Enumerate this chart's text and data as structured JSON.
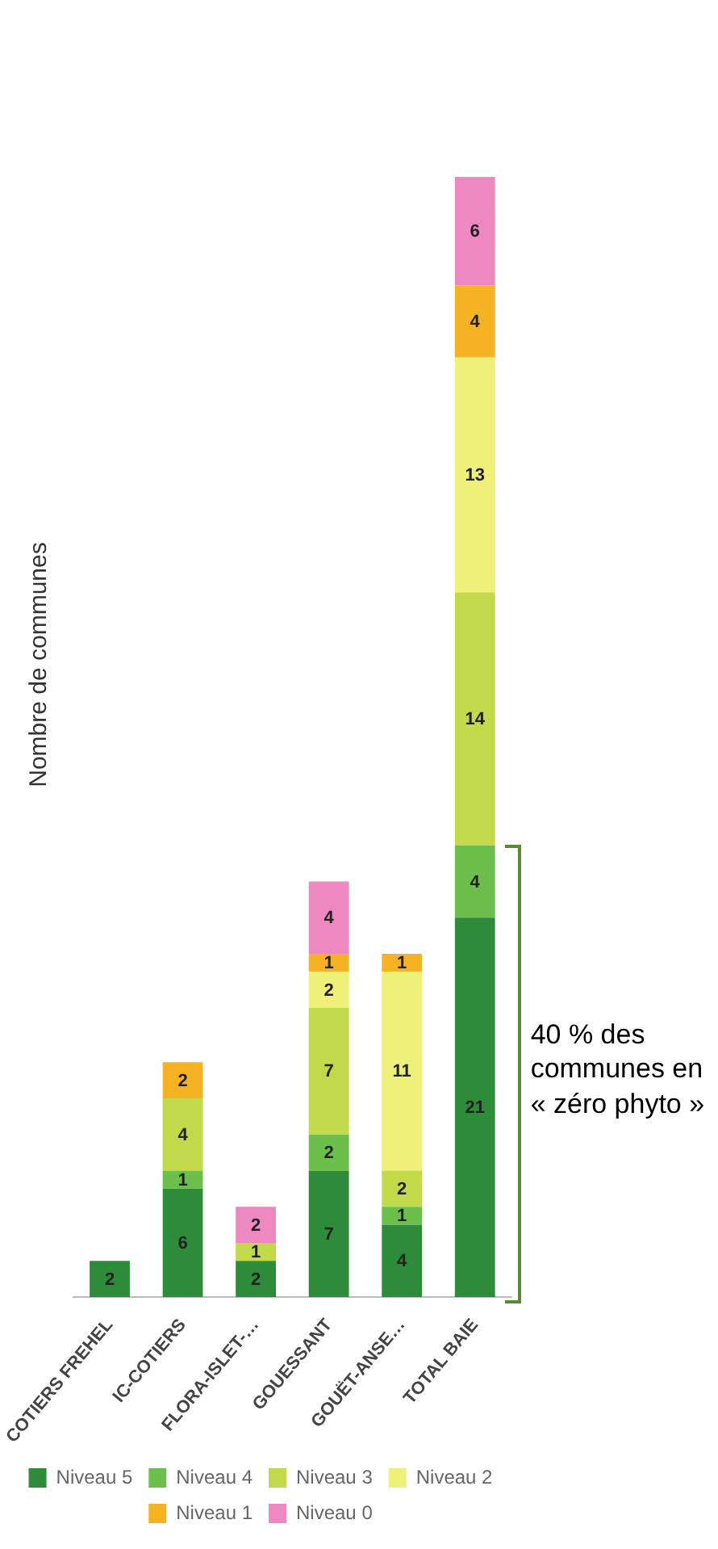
{
  "chart_data": {
    "type": "bar",
    "stacked": true,
    "categories": [
      "COTIERS FREHEL",
      "IC-COTIERS",
      "FLORA-ISLET-…",
      "GOUESSANT",
      "GOUËT-ANSE…",
      "TOTAL BAIE"
    ],
    "ylabel": "Nombre de communes",
    "series": [
      {
        "name": "Niveau 5",
        "color": "#2e8b3a",
        "values": [
          2,
          6,
          2,
          7,
          4,
          21
        ]
      },
      {
        "name": "Niveau 4",
        "color": "#6cbf4a",
        "values": [
          null,
          1,
          null,
          2,
          1,
          4
        ]
      },
      {
        "name": "Niveau 3",
        "color": "#c2d94a",
        "values": [
          null,
          4,
          1,
          7,
          2,
          14
        ]
      },
      {
        "name": "Niveau 2",
        "color": "#eef07a",
        "values": [
          null,
          null,
          null,
          2,
          11,
          13
        ]
      },
      {
        "name": "Niveau 1",
        "color": "#f5b324",
        "values": [
          null,
          2,
          null,
          1,
          1,
          4
        ]
      },
      {
        "name": "Niveau 0",
        "color": "#ee88c0",
        "values": [
          null,
          null,
          2,
          4,
          null,
          6
        ]
      }
    ],
    "data_labels": true,
    "legend": "bottom",
    "annotations": [
      "40 % des communes en « zéro phyto »"
    ]
  }
}
